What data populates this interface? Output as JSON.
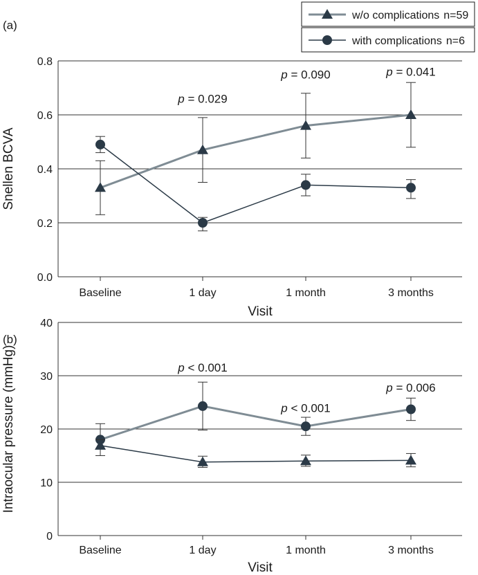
{
  "colors": {
    "light_series": "#7f8c94",
    "dark_series": "#2b3a47",
    "grid": "#333333",
    "errbar": "#333333"
  },
  "legend": [
    {
      "label": "w/o complications",
      "n": "n=59",
      "marker": "triangle-marker"
    },
    {
      "label": "with complications",
      "n": "n=6",
      "marker": "circle-marker"
    }
  ],
  "chart_data": [
    {
      "panel_label": "(a)",
      "type": "line",
      "categories": [
        "Baseline",
        "1 day",
        "1 month",
        "3 months"
      ],
      "xlabel": "Visit",
      "ylabel": "Snellen BCVA",
      "ylim": [
        0,
        0.8
      ],
      "yticks": [
        "0.0",
        "0.2",
        "0.4",
        "0.6",
        "0.8"
      ],
      "ytick_values": [
        0,
        0.2,
        0.4,
        0.6,
        0.8
      ],
      "grid": "horizontal",
      "series": [
        {
          "marker": "triangle",
          "color": "light",
          "values": [
            0.33,
            0.47,
            0.56,
            0.6
          ],
          "err_low": [
            0.23,
            0.35,
            0.44,
            0.48
          ],
          "err_high": [
            0.43,
            0.59,
            0.68,
            0.72
          ]
        },
        {
          "marker": "circle",
          "color": "dark",
          "values": [
            0.49,
            0.2,
            0.34,
            0.33
          ],
          "err_low": [
            0.46,
            0.17,
            0.3,
            0.29
          ],
          "err_high": [
            0.52,
            0.22,
            0.38,
            0.36
          ]
        }
      ],
      "annotations": [
        {
          "category": "1 day",
          "p_label": "p",
          "text": " = 0.029",
          "y": 0.645
        },
        {
          "category": "1 month",
          "p_label": "p",
          "text": " = 0.090",
          "y": 0.735
        },
        {
          "category": "3 months",
          "p_label": "p",
          "text": " = 0.041",
          "y": 0.745
        }
      ]
    },
    {
      "panel_label": "(b)",
      "type": "line",
      "categories": [
        "Baseline",
        "1 day",
        "1 month",
        "3 months"
      ],
      "xlabel": "Visit",
      "ylabel": "Intraocular pressure (mmHg)",
      "ylim": [
        0,
        40
      ],
      "yticks": [
        "0",
        "10",
        "20",
        "30",
        "40"
      ],
      "ytick_values": [
        0,
        10,
        20,
        30,
        40
      ],
      "grid": "horizontal",
      "series": [
        {
          "marker": "circle",
          "color": "light",
          "values": [
            18.0,
            24.3,
            20.5,
            23.7
          ],
          "err_low": [
            15.0,
            19.8,
            18.8,
            21.6
          ],
          "err_high": [
            21.0,
            28.8,
            22.2,
            25.8
          ],
          "marker_color": "dark"
        },
        {
          "marker": "triangle",
          "color": "dark",
          "values": [
            16.9,
            13.8,
            14.0,
            14.1
          ],
          "err_low": [
            15.0,
            12.8,
            13.0,
            12.9
          ],
          "err_high": [
            18.0,
            14.9,
            15.1,
            15.4
          ]
        }
      ],
      "annotations": [
        {
          "category": "1 day",
          "p_label": "p",
          "text": " < 0.001",
          "y": 30.8
        },
        {
          "category": "1 month",
          "p_label": "p",
          "text": " < 0.001",
          "y": 23.2
        },
        {
          "category": "3 months",
          "p_label": "p",
          "text": " = 0.006",
          "y": 27.0
        }
      ]
    }
  ]
}
